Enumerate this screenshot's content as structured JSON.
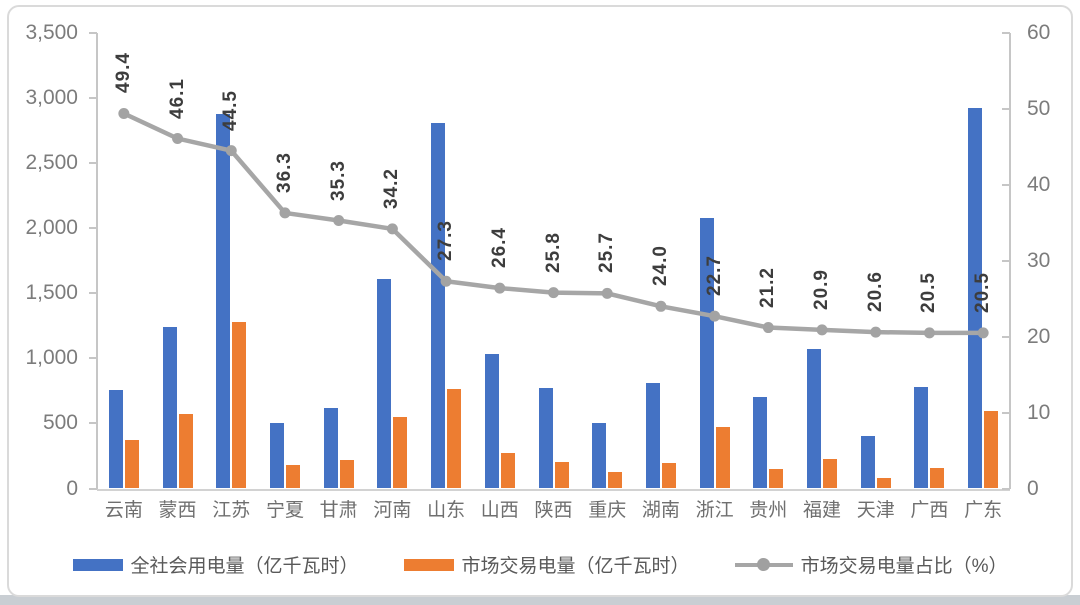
{
  "chart_data": {
    "type": "bar",
    "combo": "bar+line",
    "title": "",
    "categories": [
      "云南",
      "蒙西",
      "江苏",
      "宁夏",
      "甘肃",
      "河南",
      "山东",
      "山西",
      "陕西",
      "重庆",
      "湖南",
      "浙江",
      "贵州",
      "福建",
      "天津",
      "广西",
      "广东"
    ],
    "series": [
      {
        "key": "total",
        "name": "全社会用电量（亿千瓦时）",
        "type": "bar",
        "axis": "left",
        "color": "#4472C4",
        "values": [
          760,
          1240,
          2880,
          505,
          615,
          1610,
          2805,
          1030,
          775,
          505,
          812,
          2080,
          700,
          1075,
          405,
          782,
          2920
        ]
      },
      {
        "key": "market",
        "name": "市场交易电量（亿千瓦时）",
        "type": "bar",
        "axis": "left",
        "color": "#ED7D31",
        "values": [
          375,
          570,
          1282,
          183,
          217,
          550,
          766,
          272,
          200,
          130,
          195,
          470,
          148,
          225,
          84,
          160,
          598
        ]
      },
      {
        "key": "ratio",
        "name": "市场交易电量占比（%）",
        "type": "line",
        "axis": "right",
        "color": "#A6A6A6",
        "values": [
          49.4,
          46.1,
          44.5,
          36.3,
          35.3,
          34.2,
          27.3,
          26.4,
          25.8,
          25.7,
          24.0,
          22.7,
          21.2,
          20.9,
          20.6,
          20.5,
          20.5
        ],
        "point_labels": [
          "49.4",
          "46.1",
          "44.5",
          "36.3",
          "35.3",
          "34.2",
          "27.3",
          "26.4",
          "25.8",
          "25.7",
          "24.0",
          "22.7",
          "21.2",
          "20.9",
          "20.6",
          "20.5",
          "20.5"
        ]
      }
    ],
    "left_axis": {
      "min": 0,
      "max": 3500,
      "step": 500,
      "tick_labels": [
        "0",
        "500",
        "1,000",
        "1,500",
        "2,000",
        "2,500",
        "3,000",
        "3,500"
      ]
    },
    "right_axis": {
      "min": 0,
      "max": 60,
      "step": 10,
      "tick_labels": [
        "0",
        "10",
        "20",
        "30",
        "40",
        "50",
        "60"
      ]
    },
    "grid": false,
    "legend_position": "bottom",
    "point_label_rotation": -90
  },
  "colors": {
    "bar_total": "#4472C4",
    "bar_market": "#ED7D31",
    "line_ratio": "#A6A6A6",
    "axis_text": "#7C7C7C",
    "category_text": "#6F6F6F",
    "point_label_text": "#3D3D3D",
    "axis_line": "#C6C6C6",
    "card_border": "#DADADA"
  }
}
